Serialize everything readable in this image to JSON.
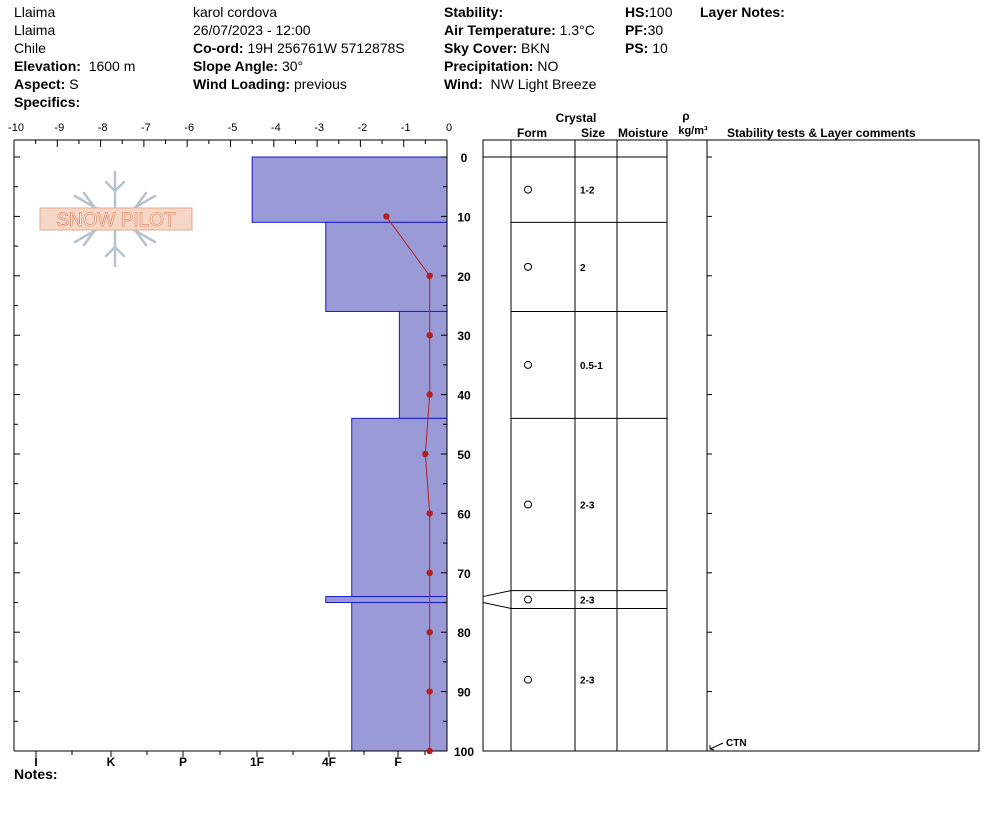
{
  "header": {
    "col1": [
      "Llaima",
      "Llaima",
      "Chile"
    ],
    "elevation": {
      "label": "Elevation:",
      "value": "1600 m"
    },
    "aspect": {
      "label": "Aspect:",
      "value": "S"
    },
    "specifics": {
      "label": "Specifics:",
      "value": ""
    },
    "observer": "karol cordova",
    "datetime": "26/07/2023 - 12:00",
    "coord": {
      "label": "Co-ord:",
      "value": "19H 256761W 5712878S"
    },
    "slope": {
      "label": "Slope Angle:",
      "value": "30°"
    },
    "wind_loading": {
      "label": "Wind Loading:",
      "value": "previous"
    },
    "stability": {
      "label": "Stability:",
      "value": ""
    },
    "air_temp": {
      "label": "Air Temperature:",
      "value": "1.3°C"
    },
    "sky": {
      "label": "Sky Cover:",
      "value": "BKN"
    },
    "precip": {
      "label": "Precipitation:",
      "value": "NO"
    },
    "wind": {
      "label": "Wind:",
      "value": "NW Light Breeze"
    },
    "hs": {
      "label": "HS:",
      "value": "100"
    },
    "pf": {
      "label": "PF:",
      "value": "30"
    },
    "ps": {
      "label": "PS:",
      "value": "10"
    },
    "layer_notes": {
      "label": "Layer Notes:",
      "value": ""
    }
  },
  "notes": {
    "label": "Notes:",
    "value": ""
  },
  "logo": {
    "text": "SNOW PILOT"
  },
  "colors": {
    "hardness_fill": "#9a9ad6",
    "hardness_stroke": "#1a1acc",
    "temp_line": "#b22222",
    "grid": "#000000"
  },
  "table_headers": {
    "crystal": "Crystal",
    "form": "Form",
    "size": "Size",
    "moisture": "Moisture",
    "rho": "ρ",
    "density_unit": "kg/m³",
    "comments": "Stability tests & Layer comments"
  },
  "chart_data": {
    "type": "snow-profile",
    "temperature_axis": {
      "ticks": [
        -10,
        -9,
        -8,
        -7,
        -6,
        -5,
        -4,
        -3,
        -2,
        -1,
        0
      ],
      "range": [
        -10,
        0
      ]
    },
    "depth_axis": {
      "ticks": [
        0,
        10,
        20,
        30,
        40,
        50,
        60,
        70,
        80,
        90,
        100
      ],
      "range": [
        0,
        100
      ]
    },
    "hardness_axis": {
      "ticks": [
        "I",
        "K",
        "P",
        "1F",
        "4F",
        "F"
      ]
    },
    "hardness_layers": [
      {
        "top": 0,
        "bottom": 11,
        "hardness_value": -4.5
      },
      {
        "top": 11,
        "bottom": 26,
        "hardness_value": -2.8
      },
      {
        "top": 26,
        "bottom": 44,
        "hardness_value": -1.1
      },
      {
        "top": 44,
        "bottom": 74,
        "hardness_value": -2.2
      },
      {
        "top": 74,
        "bottom": 75,
        "hardness_value": -2.8
      },
      {
        "top": 75,
        "bottom": 100,
        "hardness_value": -2.2
      }
    ],
    "temperature_profile": [
      {
        "depth": 10,
        "temp": -1.4
      },
      {
        "depth": 20,
        "temp": -0.4
      },
      {
        "depth": 30,
        "temp": -0.4
      },
      {
        "depth": 40,
        "temp": -0.4
      },
      {
        "depth": 50,
        "temp": -0.5
      },
      {
        "depth": 60,
        "temp": -0.4
      },
      {
        "depth": 70,
        "temp": -0.4
      },
      {
        "depth": 80,
        "temp": -0.4
      },
      {
        "depth": 90,
        "temp": -0.4
      },
      {
        "depth": 100,
        "temp": -0.4
      }
    ],
    "layer_rows": [
      {
        "top": 0,
        "bottom": 11,
        "size": "1-2"
      },
      {
        "top": 11,
        "bottom": 26,
        "size": "2"
      },
      {
        "top": 26,
        "bottom": 44,
        "size": "0.5-1"
      },
      {
        "top": 44,
        "bottom": 73,
        "size": "2-3"
      },
      {
        "top": 73,
        "bottom": 76,
        "size": "2-3"
      },
      {
        "top": 76,
        "bottom": 100,
        "size": "2-3"
      }
    ],
    "stability_tests": [
      {
        "depth": 100,
        "label": "CTN"
      }
    ]
  }
}
